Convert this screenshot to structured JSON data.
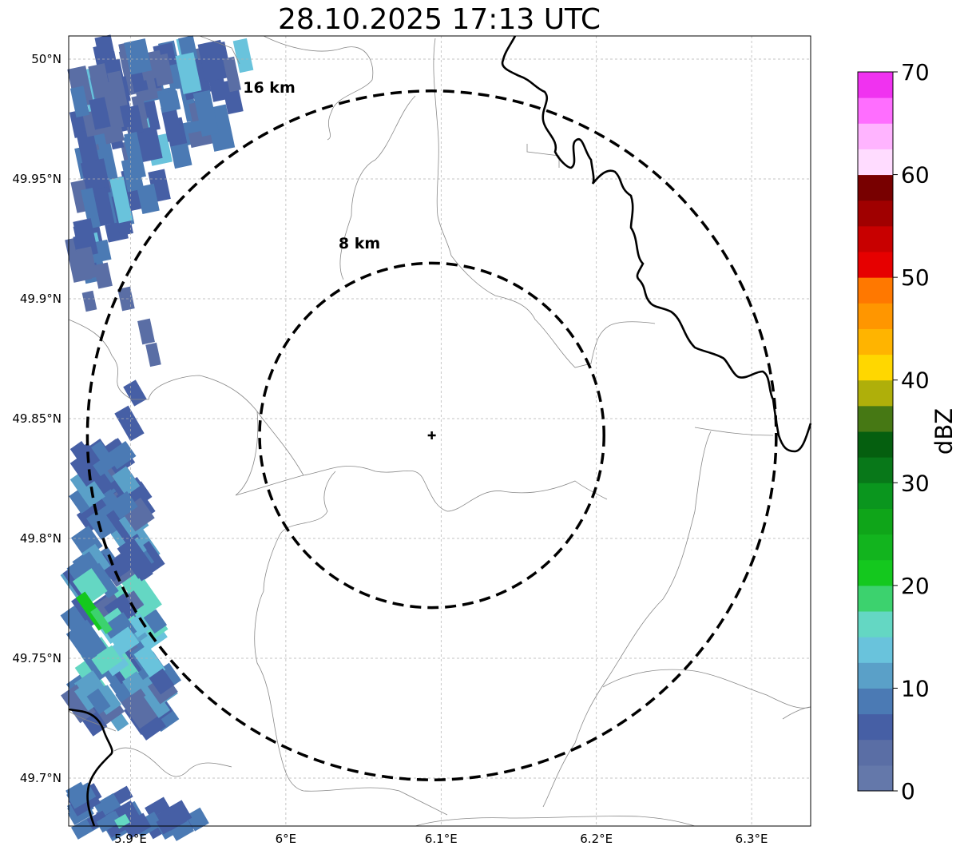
{
  "title": "28.10.2025 17:13 UTC",
  "map": {
    "lon_ticks": [
      "5.9°E",
      "6°E",
      "6.1°E",
      "6.2°E",
      "6.3°E"
    ],
    "lat_ticks": [
      "50°N",
      "49.95°N",
      "49.9°N",
      "49.85°N",
      "49.8°N",
      "49.75°N",
      "49.7°N"
    ],
    "grid": true,
    "radar_site": {
      "lon": 6.094,
      "lat": 49.843
    },
    "range_rings": [
      {
        "label": "8 km",
        "radius_km": 8
      },
      {
        "label": "16 km",
        "radius_km": 16
      }
    ]
  },
  "colorbar": {
    "label": "dBZ",
    "ticks": [
      "0",
      "10",
      "20",
      "30",
      "40",
      "50",
      "60",
      "70"
    ],
    "min": 0,
    "max": 70,
    "step": 2.5,
    "colors": [
      "#6478aa",
      "#5a6ea5",
      "#465fa5",
      "#4b7ab4",
      "#5aa0c8",
      "#69c3dc",
      "#64d7c3",
      "#3cd26e",
      "#14c81e",
      "#12b41e",
      "#0fa519",
      "#0a961e",
      "#087819",
      "#055f0f",
      "#467814",
      "#afaf0a",
      "#ffd700",
      "#ffb400",
      "#ff9600",
      "#ff7800",
      "#e60000",
      "#c80000",
      "#a00000",
      "#780000",
      "#ffdcff",
      "#ffb4ff",
      "#ff6eff",
      "#f032f0"
    ]
  },
  "colors": {
    "ring": "#000000",
    "border": "#000000",
    "admin_boundary": "#888888",
    "grid": "#b0b0b0"
  }
}
